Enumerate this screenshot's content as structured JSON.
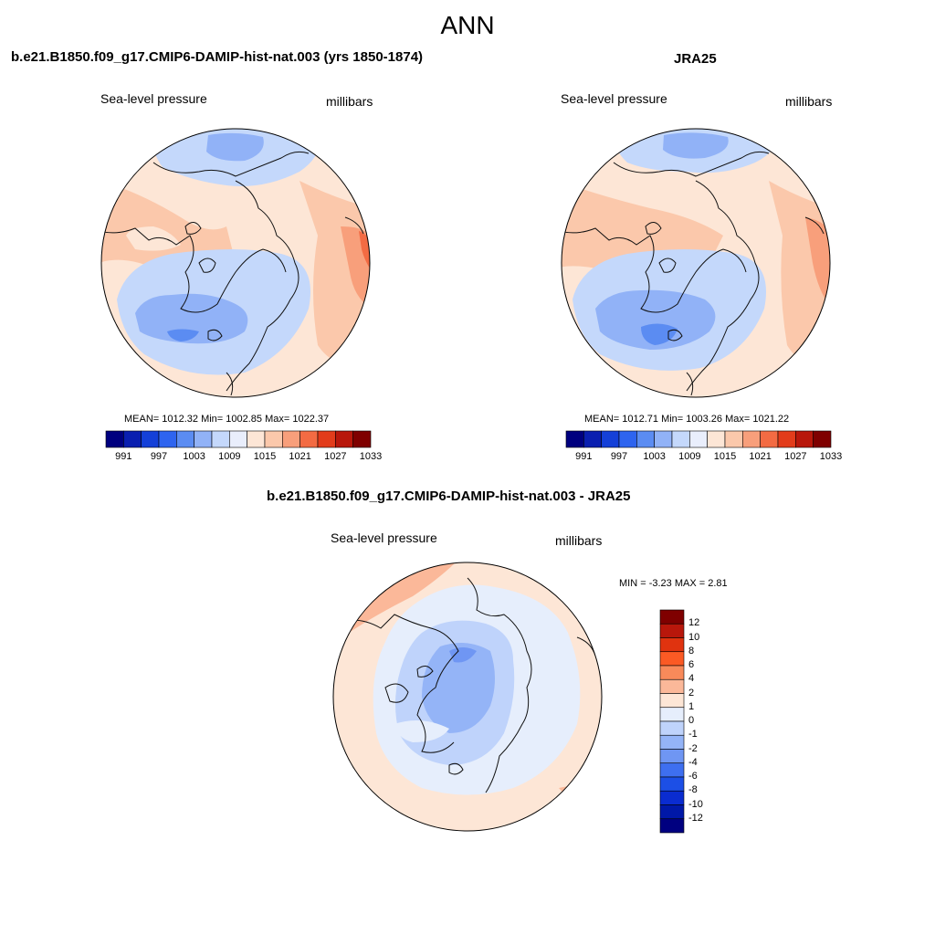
{
  "title": "ANN",
  "colors": {
    "abs_scale": [
      "#00007f",
      "#0a1fb0",
      "#1440d8",
      "#2e64ef",
      "#5b8cf2",
      "#91b2f7",
      "#c4d8fb",
      "#e9eefc",
      "#fde6d6",
      "#fbc8ab",
      "#f89f7b",
      "#f36b43",
      "#e23c1b",
      "#b8170b",
      "#7f0000"
    ],
    "diff_scale": [
      "#7f0000",
      "#b8170b",
      "#e0330f",
      "#fb5a24",
      "#f88a5a",
      "#fbb899",
      "#fde6d6",
      "#e6eefc",
      "#bfd3fb",
      "#94b4f7",
      "#6f96f3",
      "#3e6ff0",
      "#1c4fe6",
      "#0a2cd0",
      "#0018a8",
      "#000080"
    ],
    "coast": "#111111"
  },
  "panels": [
    {
      "id": "model",
      "title": "b.e21.B1850.f09_g17.CMIP6-DAMIP-hist-nat.003 (yrs 1850-1874)",
      "left_label": "Sea-level pressure",
      "right_label": "millibars",
      "stats": "MEAN= 1012.32  Min= 1002.85  Max= 1022.37",
      "mean": 1012.32,
      "min": 1002.85,
      "max": 1022.37,
      "colorbar_ticks": [
        "991",
        "997",
        "1003",
        "1009",
        "1015",
        "1021",
        "1027",
        "1033"
      ]
    },
    {
      "id": "obs",
      "title": "JRA25",
      "left_label": "Sea-level pressure",
      "right_label": "millibars",
      "stats": "MEAN= 1012.71  Min= 1003.26  Max= 1021.22",
      "mean": 1012.71,
      "min": 1003.26,
      "max": 1021.22,
      "colorbar_ticks": [
        "991",
        "997",
        "1003",
        "1009",
        "1015",
        "1021",
        "1027",
        "1033"
      ]
    },
    {
      "id": "diff",
      "title": "b.e21.B1850.f09_g17.CMIP6-DAMIP-hist-nat.003 - JRA25",
      "left_label": "Sea-level pressure",
      "right_label": "millibars",
      "stats": "MIN =  -3.23 MAX =   2.81",
      "min": -3.23,
      "max": 2.81,
      "colorbar_ticks": [
        "12",
        "10",
        "8",
        "6",
        "4",
        "2",
        "1",
        "0",
        "-1",
        "-2",
        "-4",
        "-6",
        "-8",
        "-10",
        "-12"
      ]
    }
  ]
}
